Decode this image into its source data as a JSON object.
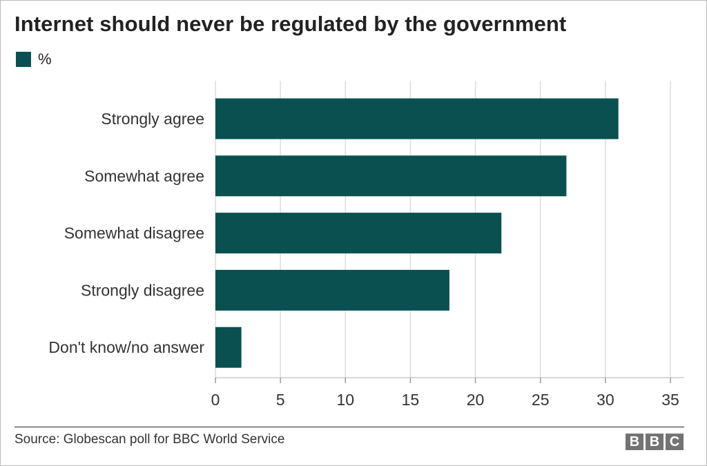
{
  "title": "Internet should never be regulated by the government",
  "legend": {
    "label": "%",
    "color": "#0b5050"
  },
  "source": "Source: Globescan poll for BBC World Service",
  "logo": [
    "B",
    "B",
    "C"
  ],
  "chart_data": {
    "type": "bar",
    "orientation": "horizontal",
    "title": "Internet should never be regulated by the government",
    "categories": [
      "Strongly agree",
      "Somewhat agree",
      "Somewhat disagree",
      "Strongly disagree",
      "Don't know/no answer"
    ],
    "series": [
      {
        "name": "%",
        "values": [
          31,
          27,
          22,
          18,
          2
        ],
        "color": "#0b5050"
      }
    ],
    "xlim": [
      0,
      35
    ],
    "xticks": [
      0,
      5,
      10,
      15,
      20,
      25,
      30,
      35
    ],
    "grid": "vertical",
    "legend_position": "top-left",
    "gridline_color": "#dddddd"
  }
}
